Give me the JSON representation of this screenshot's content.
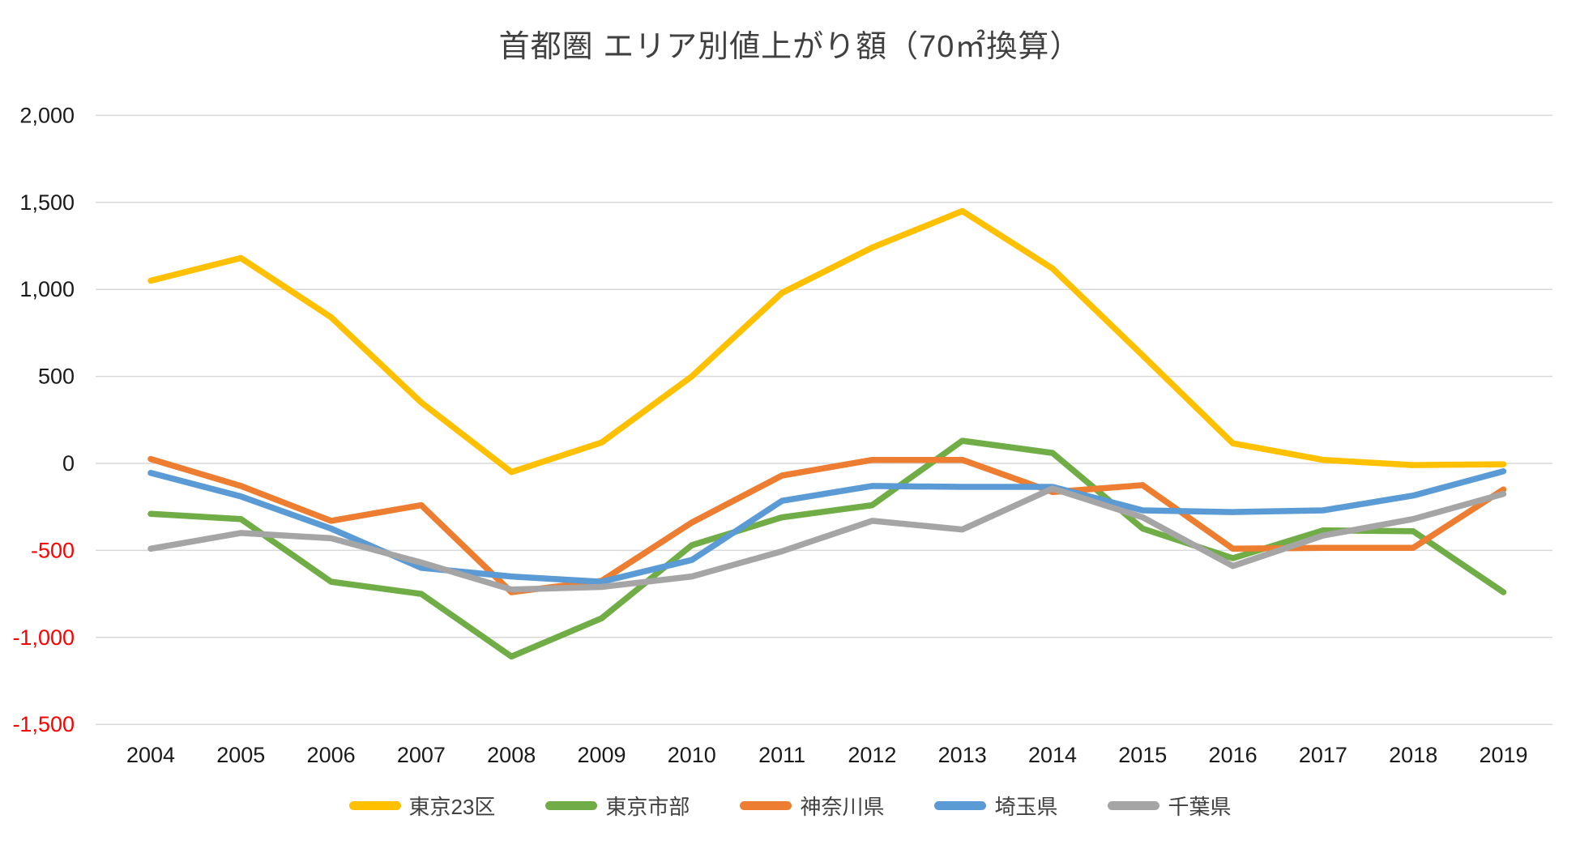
{
  "title": "首都圏 エリア別値上がり額（70㎡換算）",
  "chart_data": {
    "type": "line",
    "title": "首都圏 エリア別値上がり額（70㎡換算）",
    "categories": [
      "2004",
      "2005",
      "2006",
      "2007",
      "2008",
      "2009",
      "2010",
      "2011",
      "2012",
      "2013",
      "2014",
      "2015",
      "2016",
      "2017",
      "2018",
      "2019"
    ],
    "series": [
      {
        "name": "東京23区",
        "color": "#FFC000",
        "values": [
          1050,
          1180,
          840,
          350,
          -50,
          120,
          500,
          980,
          1240,
          1450,
          1120,
          620,
          115,
          20,
          -10,
          -5
        ]
      },
      {
        "name": "東京市部",
        "color": "#70AD47",
        "values": [
          -290,
          -320,
          -680,
          -750,
          -1110,
          -890,
          -470,
          -310,
          -240,
          130,
          60,
          -375,
          -545,
          -385,
          -390,
          -740
        ]
      },
      {
        "name": "神奈川県",
        "color": "#ED7D31",
        "values": [
          25,
          -130,
          -330,
          -240,
          -740,
          -675,
          -340,
          -70,
          20,
          20,
          -165,
          -125,
          -490,
          -485,
          -485,
          -150
        ]
      },
      {
        "name": "埼玉県",
        "color": "#5B9BD5",
        "values": [
          -55,
          -190,
          -375,
          -600,
          -650,
          -680,
          -555,
          -215,
          -130,
          -135,
          -135,
          -270,
          -280,
          -270,
          -185,
          -45
        ]
      },
      {
        "name": "千葉県",
        "color": "#A5A5A5",
        "values": [
          -490,
          -400,
          -430,
          -570,
          -725,
          -710,
          -650,
          -505,
          -330,
          -380,
          -145,
          -310,
          -590,
          -415,
          -320,
          -175
        ]
      }
    ],
    "xlabel": "",
    "ylabel": "",
    "ylim": [
      -1500,
      2000
    ],
    "ytick_step": 500,
    "grid": "horizontal",
    "gridline_color": "#D9D9D9",
    "tick_label_color": "#1a1a1a",
    "negative_tick_label_color": "#FF0000",
    "legend_position": "bottom",
    "legend_labels": [
      "東京23区",
      "東京市部",
      "神奈川県",
      "埼玉県",
      "千葉県"
    ]
  }
}
